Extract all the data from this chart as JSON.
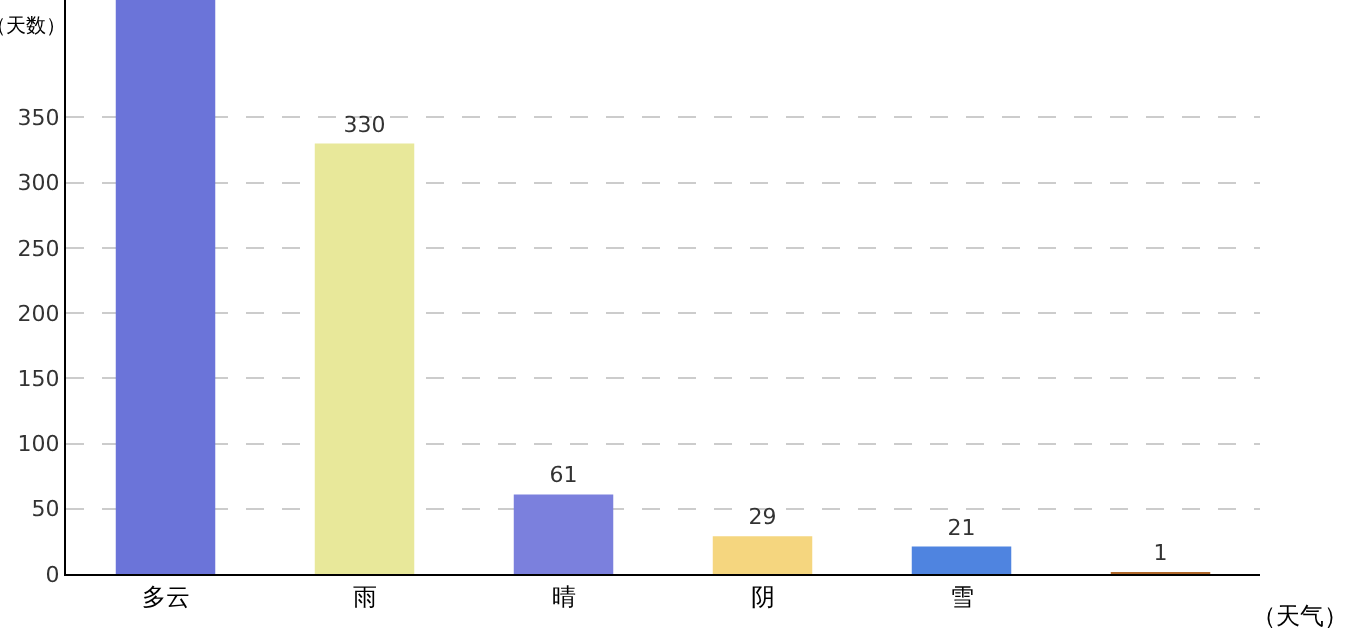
{
  "chart_data": {
    "type": "bar",
    "xlabel": "（天气）",
    "ylabel": "（天数）",
    "categories": [
      "多云",
      "雨",
      "晴",
      "阴",
      "雪",
      null
    ],
    "values": [
      440,
      330,
      61,
      29,
      21,
      1
    ],
    "colors": [
      "#6b74d9",
      "#e8e89a",
      "#7b80dd",
      "#f5d67f",
      "#4f84e0",
      "#b0682a"
    ],
    "value_labels": [
      null,
      "330",
      "61",
      "29",
      "21",
      "1"
    ],
    "ylim": [
      0,
      440
    ],
    "yticks": [
      0,
      50,
      100,
      150,
      200,
      250,
      300,
      350
    ],
    "grid": "y"
  }
}
